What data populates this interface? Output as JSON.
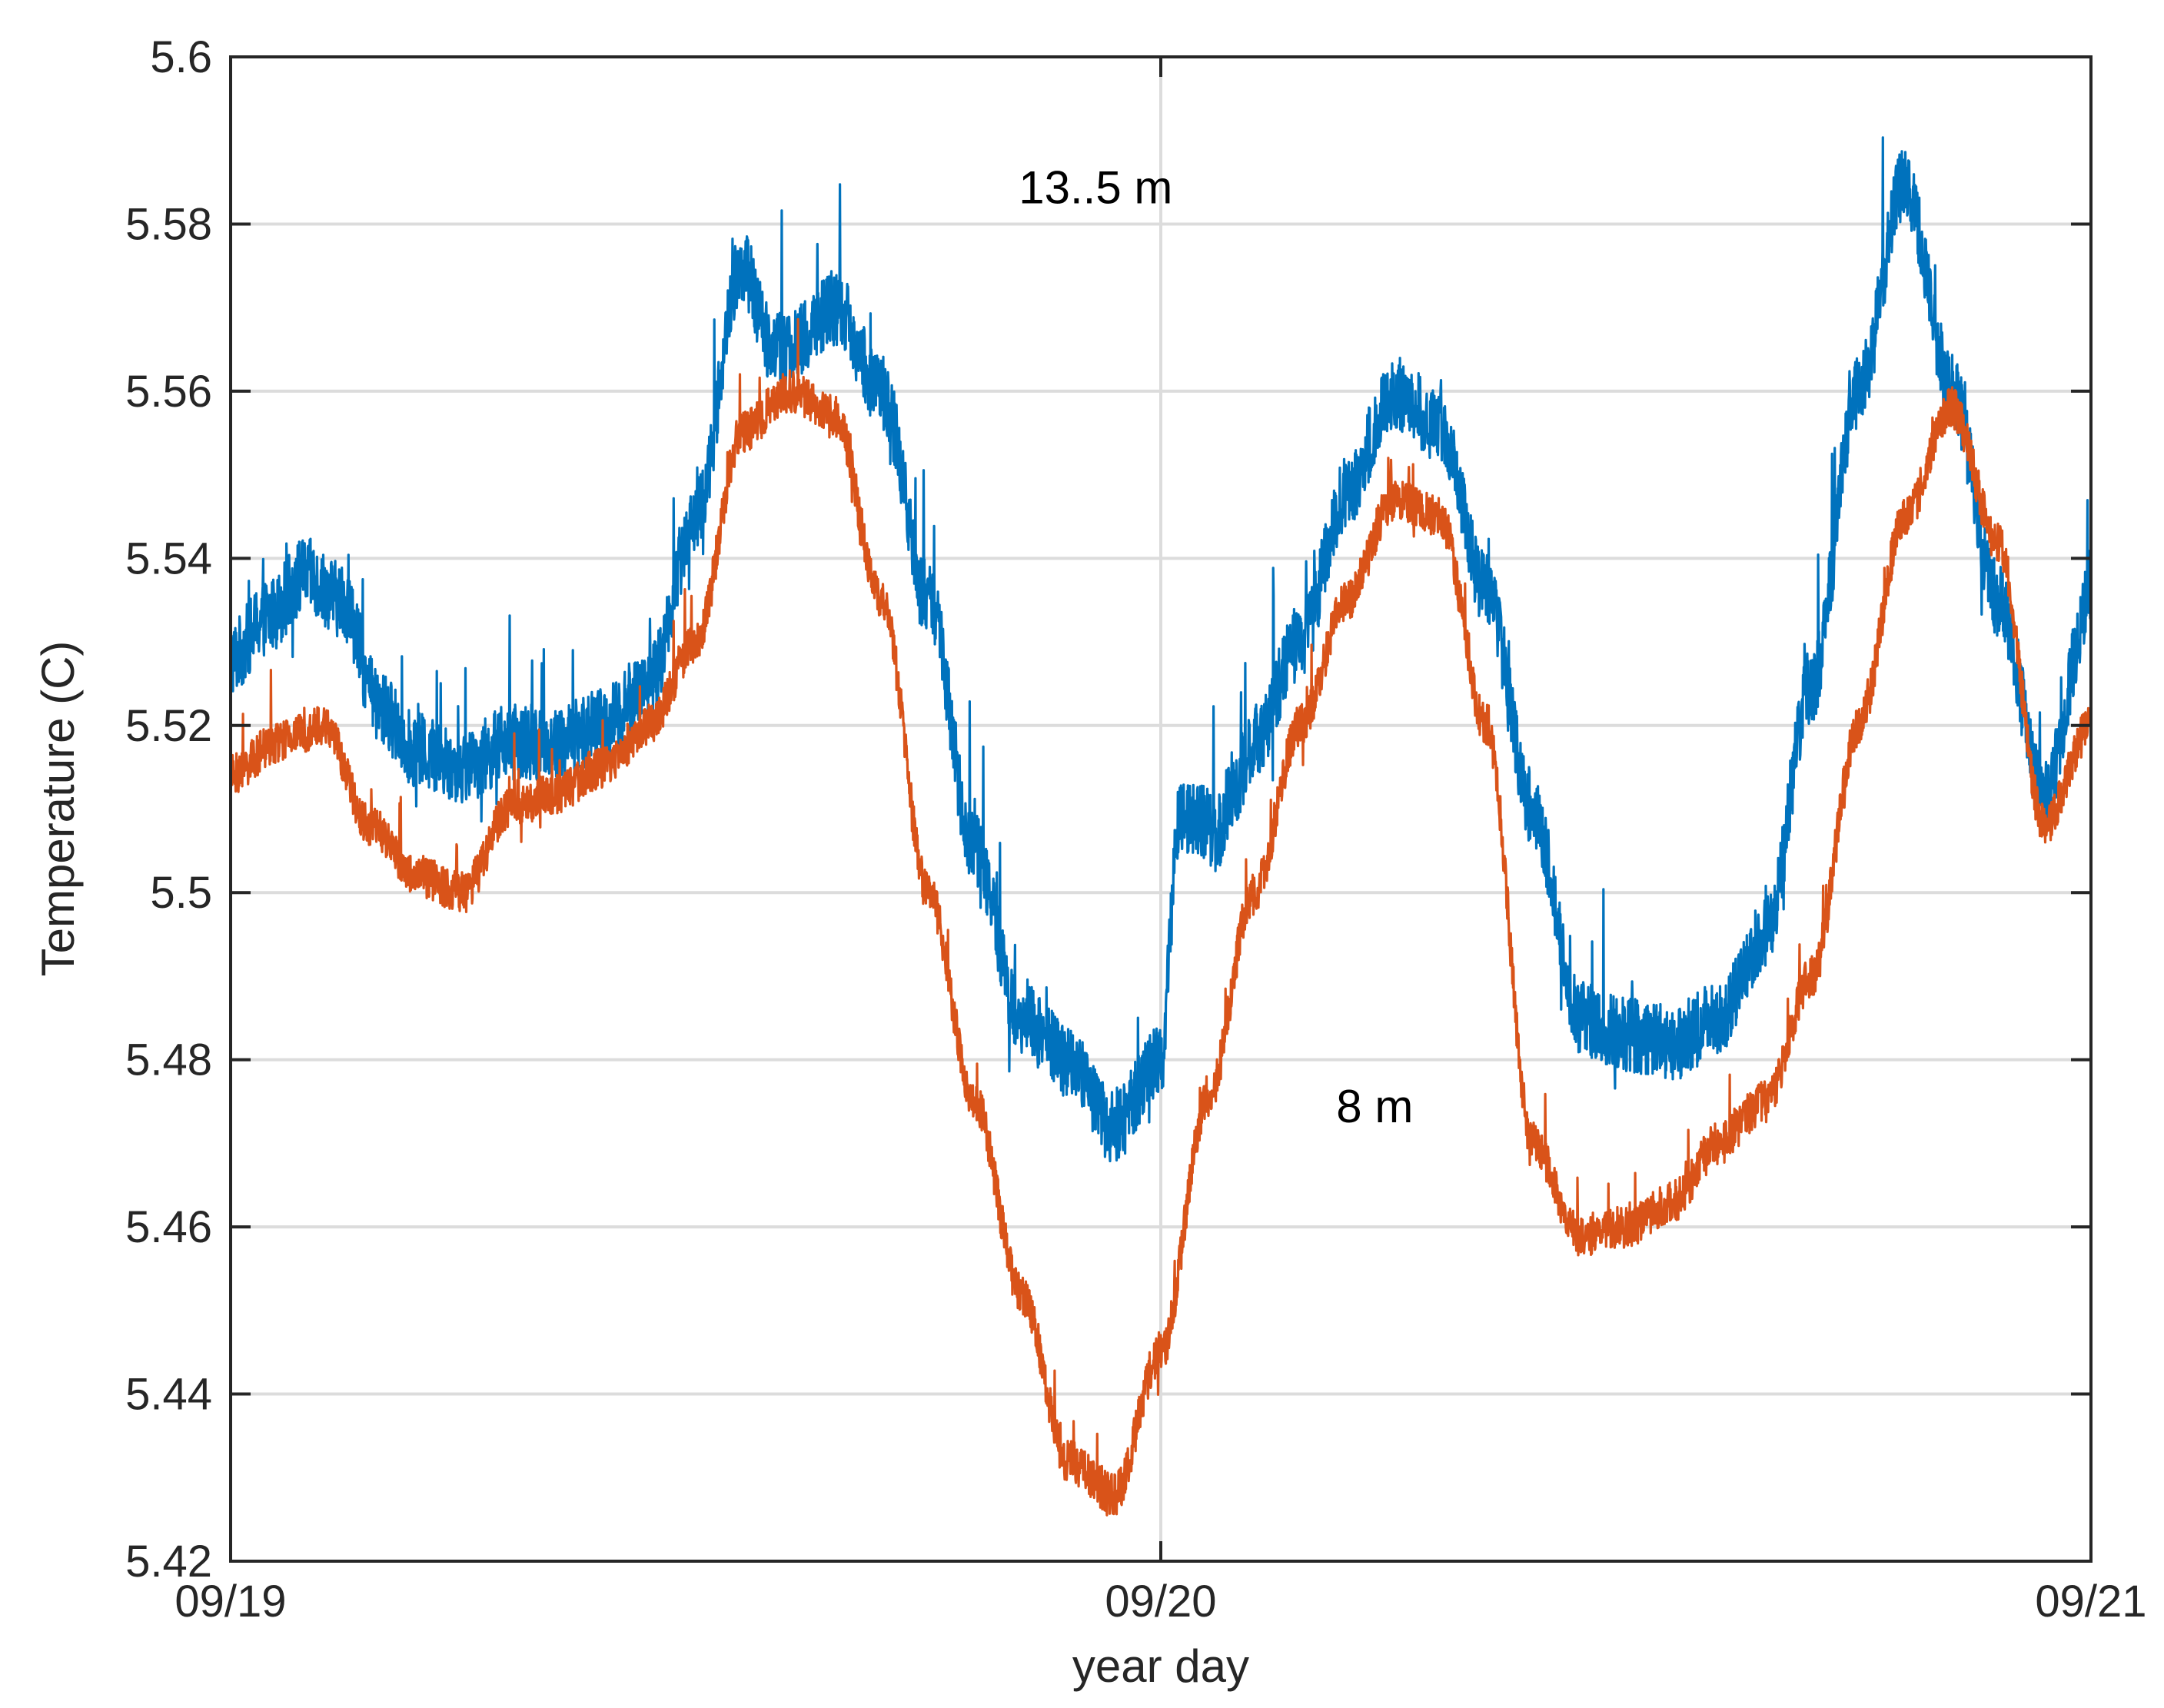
{
  "chart_data": {
    "type": "line",
    "title": "",
    "xlabel": "year day",
    "ylabel": "Temperature (C)",
    "x_ticks": [
      "09/19",
      "09/20",
      "09/21"
    ],
    "x_range_days": [
      0,
      2
    ],
    "y_ticks": [
      "5.42",
      "5.44",
      "5.46",
      "5.48",
      "5.5",
      "5.52",
      "5.54",
      "5.56",
      "5.58",
      "5.6"
    ],
    "ylim": [
      5.42,
      5.6
    ],
    "grid": true,
    "annotations": [
      {
        "text": "13..5 m",
        "x": 0.93,
        "y": 5.5825
      },
      {
        "text": "8 m",
        "x": 1.23,
        "y": 5.4725
      }
    ],
    "series": [
      {
        "name": "13..5 m",
        "color": "#0072bd",
        "noise": 0.009,
        "x": [
          0,
          0.04,
          0.08,
          0.12,
          0.16,
          0.2,
          0.25,
          0.3,
          0.35,
          0.4,
          0.45,
          0.5,
          0.55,
          0.58,
          0.6,
          0.65,
          0.7,
          0.75,
          0.8,
          0.85,
          0.9,
          0.95,
          1.0,
          1.02,
          1.04,
          1.06,
          1.08,
          1.1,
          1.15,
          1.2,
          1.25,
          1.3,
          1.35,
          1.4,
          1.45,
          1.5,
          1.55,
          1.6,
          1.65,
          1.7,
          1.75,
          1.8,
          1.85,
          1.9,
          1.95,
          2.0
        ],
        "y": [
          5.528,
          5.533,
          5.538,
          5.535,
          5.522,
          5.517,
          5.515,
          5.518,
          5.518,
          5.52,
          5.525,
          5.545,
          5.575,
          5.566,
          5.565,
          5.57,
          5.56,
          5.535,
          5.505,
          5.485,
          5.48,
          5.472,
          5.48,
          5.509,
          5.509,
          5.507,
          5.513,
          5.518,
          5.53,
          5.548,
          5.56,
          5.556,
          5.536,
          5.51,
          5.485,
          5.483,
          5.482,
          5.485,
          5.495,
          5.525,
          5.56,
          5.585,
          5.56,
          5.535,
          5.512,
          5.535
        ]
      },
      {
        "name": "8 m",
        "color": "#d95319",
        "noise": 0.005,
        "x": [
          0,
          0.05,
          0.1,
          0.15,
          0.2,
          0.25,
          0.3,
          0.35,
          0.4,
          0.45,
          0.5,
          0.55,
          0.6,
          0.65,
          0.7,
          0.75,
          0.8,
          0.85,
          0.9,
          0.95,
          1.0,
          1.05,
          1.1,
          1.15,
          1.2,
          1.25,
          1.3,
          1.35,
          1.4,
          1.45,
          1.5,
          1.55,
          1.6,
          1.65,
          1.7,
          1.75,
          1.8,
          1.85,
          1.9,
          1.95,
          2.0
        ],
        "y": [
          5.514,
          5.518,
          5.52,
          5.508,
          5.502,
          5.5,
          5.51,
          5.512,
          5.515,
          5.52,
          5.53,
          5.555,
          5.56,
          5.557,
          5.535,
          5.5,
          5.475,
          5.452,
          5.432,
          5.428,
          5.445,
          5.475,
          5.5,
          5.52,
          5.535,
          5.547,
          5.545,
          5.52,
          5.47,
          5.459,
          5.46,
          5.463,
          5.47,
          5.475,
          5.49,
          5.52,
          5.545,
          5.558,
          5.542,
          5.508,
          5.52
        ]
      }
    ]
  }
}
